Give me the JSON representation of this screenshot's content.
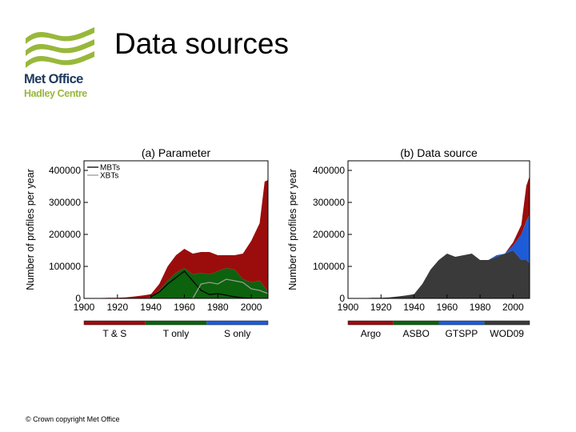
{
  "header": {
    "title": "Data sources",
    "logo_line1": "Met Office",
    "logo_line2": "Hadley Centre",
    "logo_color_dark": "#1d3a5c",
    "logo_color_green": "#98b83a"
  },
  "footer": {
    "text": "© Crown copyright   Met Office"
  },
  "chart_data": [
    {
      "type": "area",
      "stacked": true,
      "title": "(a) Parameter",
      "xlabel": "",
      "ylabel": "Number of profiles per year",
      "xlim": [
        1900,
        2010
      ],
      "ylim": [
        0,
        430000
      ],
      "x_ticks": [
        1900,
        1920,
        1940,
        1960,
        1980,
        2000
      ],
      "y_ticks": [
        0,
        100000,
        200000,
        300000,
        400000
      ],
      "x": [
        1900,
        1905,
        1910,
        1915,
        1920,
        1925,
        1930,
        1935,
        1940,
        1945,
        1950,
        1955,
        1960,
        1965,
        1970,
        1975,
        1980,
        1985,
        1990,
        1995,
        2000,
        2005,
        2008,
        2010
      ],
      "series": [
        {
          "name": "S only",
          "color": "#1e5bd6",
          "values": [
            0,
            0,
            0,
            0,
            0,
            0,
            0,
            0,
            0,
            0,
            0,
            0,
            0,
            0,
            0,
            0,
            0,
            0,
            0,
            0,
            0,
            0,
            0,
            0
          ]
        },
        {
          "name": "T only",
          "color": "#0d620d",
          "values": [
            0,
            0,
            0,
            0,
            0,
            0,
            0,
            0,
            3000,
            25000,
            55000,
            80000,
            95000,
            75000,
            80000,
            75000,
            85000,
            95000,
            90000,
            60000,
            50000,
            55000,
            35000,
            20000
          ]
        },
        {
          "name": "T & S",
          "color": "#9b0d0d",
          "values": [
            0,
            0,
            1000,
            2000,
            2000,
            3000,
            6000,
            9000,
            10000,
            20000,
            45000,
            55000,
            60000,
            65000,
            65000,
            70000,
            50000,
            40000,
            45000,
            80000,
            130000,
            180000,
            330000,
            350000
          ]
        }
      ],
      "lines": [
        {
          "name": "MBTs",
          "color": "#000000",
          "x": [
            1940,
            1945,
            1950,
            1955,
            1960,
            1965,
            1970,
            1975,
            1980,
            1985,
            1990,
            1995,
            2000
          ],
          "values": [
            5000,
            20000,
            45000,
            65000,
            85000,
            55000,
            25000,
            12000,
            15000,
            10000,
            5000,
            2000,
            0
          ]
        },
        {
          "name": "XBTs",
          "color": "#9a9a9a",
          "x": [
            1965,
            1970,
            1975,
            1980,
            1985,
            1990,
            1995,
            2000,
            2005,
            2010
          ],
          "values": [
            0,
            45000,
            50000,
            45000,
            60000,
            55000,
            50000,
            30000,
            25000,
            15000
          ]
        }
      ],
      "legend_position": "top-left",
      "bottom_legend": [
        "T & S",
        "T only",
        "S only"
      ]
    },
    {
      "type": "area",
      "stacked": true,
      "title": "(b) Data source",
      "xlabel": "",
      "ylabel": "Number of profiles per year",
      "xlim": [
        1900,
        2010
      ],
      "ylim": [
        0,
        430000
      ],
      "x_ticks": [
        1900,
        1920,
        1940,
        1960,
        1980,
        2000
      ],
      "y_ticks": [
        0,
        100000,
        200000,
        300000,
        400000
      ],
      "x": [
        1900,
        1905,
        1910,
        1915,
        1920,
        1925,
        1930,
        1935,
        1940,
        1945,
        1950,
        1955,
        1960,
        1965,
        1970,
        1975,
        1980,
        1985,
        1990,
        1995,
        2000,
        2005,
        2008,
        2010
      ],
      "series": [
        {
          "name": "WOD09",
          "color": "#3a3a3a",
          "values": [
            0,
            0,
            1000,
            2000,
            2000,
            3000,
            6000,
            9000,
            13000,
            45000,
            90000,
            120000,
            140000,
            130000,
            135000,
            140000,
            120000,
            120000,
            130000,
            140000,
            150000,
            120000,
            120000,
            110000
          ]
        },
        {
          "name": "GTSPP",
          "color": "#1e5bd6",
          "values": [
            0,
            0,
            0,
            0,
            0,
            0,
            0,
            0,
            0,
            0,
            0,
            0,
            0,
            0,
            0,
            0,
            0,
            0,
            5000,
            0,
            15000,
            80000,
            120000,
            150000
          ]
        },
        {
          "name": "ASBO",
          "color": "#0d620d",
          "values": [
            0,
            0,
            0,
            0,
            0,
            0,
            0,
            0,
            0,
            0,
            0,
            0,
            0,
            0,
            0,
            0,
            0,
            0,
            0,
            0,
            0,
            0,
            2000,
            2000
          ]
        },
        {
          "name": "Argo",
          "color": "#9b0d0d",
          "values": [
            0,
            0,
            0,
            0,
            0,
            0,
            0,
            0,
            0,
            0,
            0,
            0,
            0,
            0,
            0,
            0,
            0,
            0,
            0,
            0,
            10000,
            30000,
            110000,
            120000
          ]
        }
      ],
      "legend_position": "",
      "bottom_legend": [
        "Argo",
        "ASBO",
        "GTSPP",
        "WOD09"
      ]
    }
  ]
}
